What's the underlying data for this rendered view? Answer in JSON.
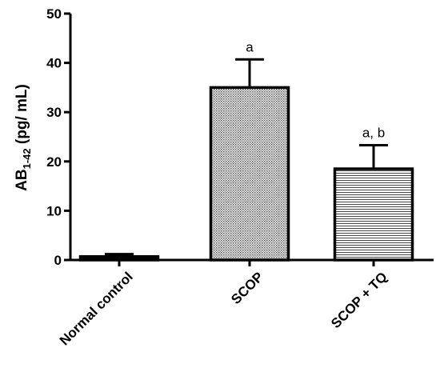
{
  "chart_data": {
    "type": "bar",
    "categories": [
      "Normal control",
      "SCOP",
      "SCOP + TQ"
    ],
    "values": [
      0.7,
      35.0,
      18.5
    ],
    "errors": [
      0.5,
      5.7,
      4.8
    ],
    "annotations": [
      "",
      "a",
      "a, b"
    ],
    "ylabel_main": "AB",
    "ylabel_sub": "1-42",
    "ylabel_unit": " (pg/ mL)",
    "ylim": [
      0,
      50
    ],
    "yticks": [
      0,
      10,
      20,
      30,
      40,
      50
    ],
    "grid": false,
    "legend": "none",
    "fills": [
      "solid-black",
      "dotted",
      "horizontal-lines"
    ],
    "color": "#000000"
  }
}
